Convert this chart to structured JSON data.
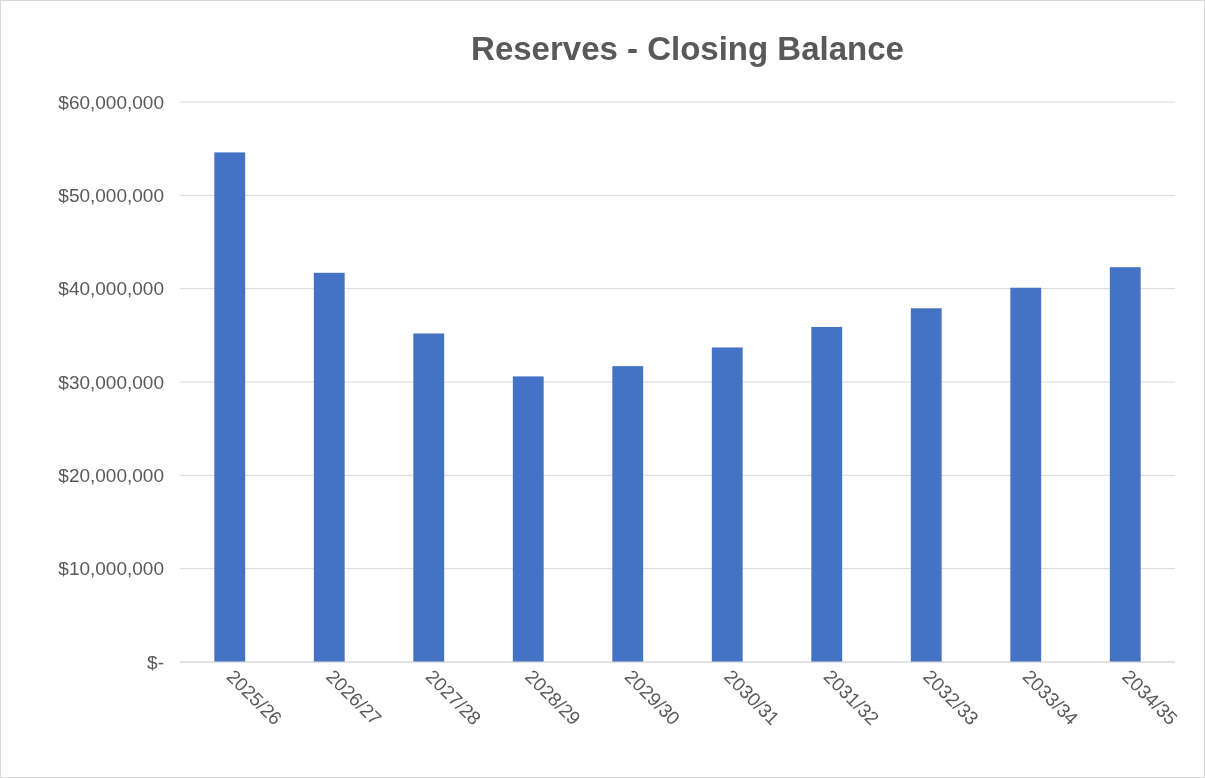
{
  "chart_data": {
    "type": "bar",
    "title": "Reserves - Closing Balance",
    "categories": [
      "2025/26",
      "2026/27",
      "2027/28",
      "2028/29",
      "2029/30",
      "2030/31",
      "2031/32",
      "2032/33",
      "2033/34",
      "2034/35"
    ],
    "values": [
      54600000,
      41700000,
      35200000,
      30600000,
      31700000,
      33700000,
      35900000,
      37900000,
      40100000,
      42300000
    ],
    "color": "#4472c4",
    "ylim": [
      0,
      60000000
    ],
    "yticks": [
      {
        "value": 0,
        "label": "$-"
      },
      {
        "value": 10000000,
        "label": "$10,000,000"
      },
      {
        "value": 20000000,
        "label": "$20,000,000"
      },
      {
        "value": 30000000,
        "label": "$30,000,000"
      },
      {
        "value": 40000000,
        "label": "$40,000,000"
      },
      {
        "value": 50000000,
        "label": "$50,000,000"
      },
      {
        "value": 60000000,
        "label": "$60,000,000"
      }
    ],
    "grid": "y"
  }
}
